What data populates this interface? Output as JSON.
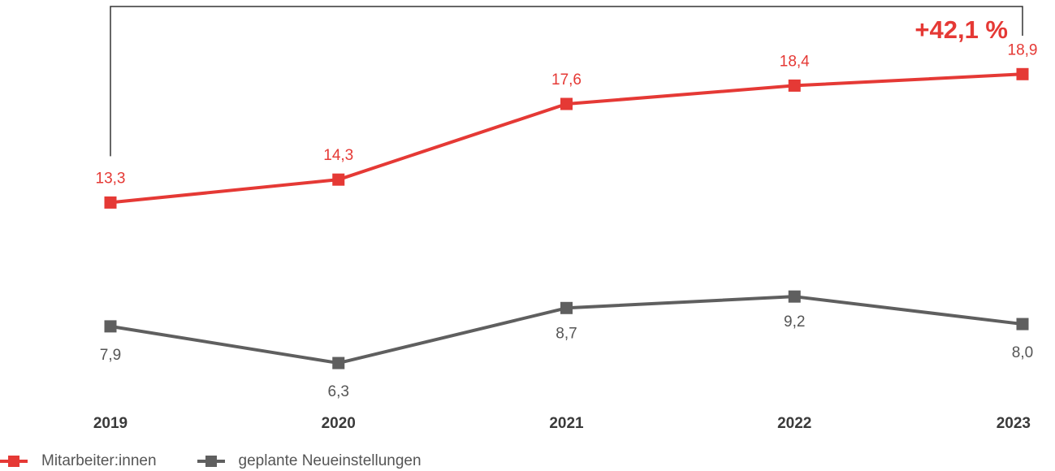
{
  "colors": {
    "series1": "#e53935",
    "series2": "#5f5f5f",
    "bracket": "#333333",
    "tick": "#3a3a3a"
  },
  "annotation": {
    "text": "+42,1 %"
  },
  "legend": {
    "items": [
      {
        "label": "Mitarbeiter:innen",
        "color": "#e53935"
      },
      {
        "label": "geplante Neueinstellungen",
        "color": "#5f5f5f"
      }
    ]
  },
  "chart_data": {
    "type": "line",
    "title": "",
    "xlabel": "",
    "ylabel": "",
    "categories": [
      "2019",
      "2020",
      "2021",
      "2022",
      "2023"
    ],
    "series": [
      {
        "name": "Mitarbeiter:innen",
        "color": "#e53935",
        "values": [
          13.3,
          14.3,
          17.6,
          18.4,
          18.9
        ],
        "labels": [
          "13,3",
          "14,3",
          "17,6",
          "18,4",
          "18,9"
        ]
      },
      {
        "name": "geplante Neueinstellungen",
        "color": "#5f5f5f",
        "values": [
          7.9,
          6.3,
          8.7,
          9.2,
          8.0
        ],
        "labels": [
          "7,9",
          "6,3",
          "8,7",
          "9,2",
          "8,0"
        ]
      }
    ],
    "ylim": [
      4,
      21
    ],
    "grid": false,
    "legend_position": "bottom-left"
  }
}
